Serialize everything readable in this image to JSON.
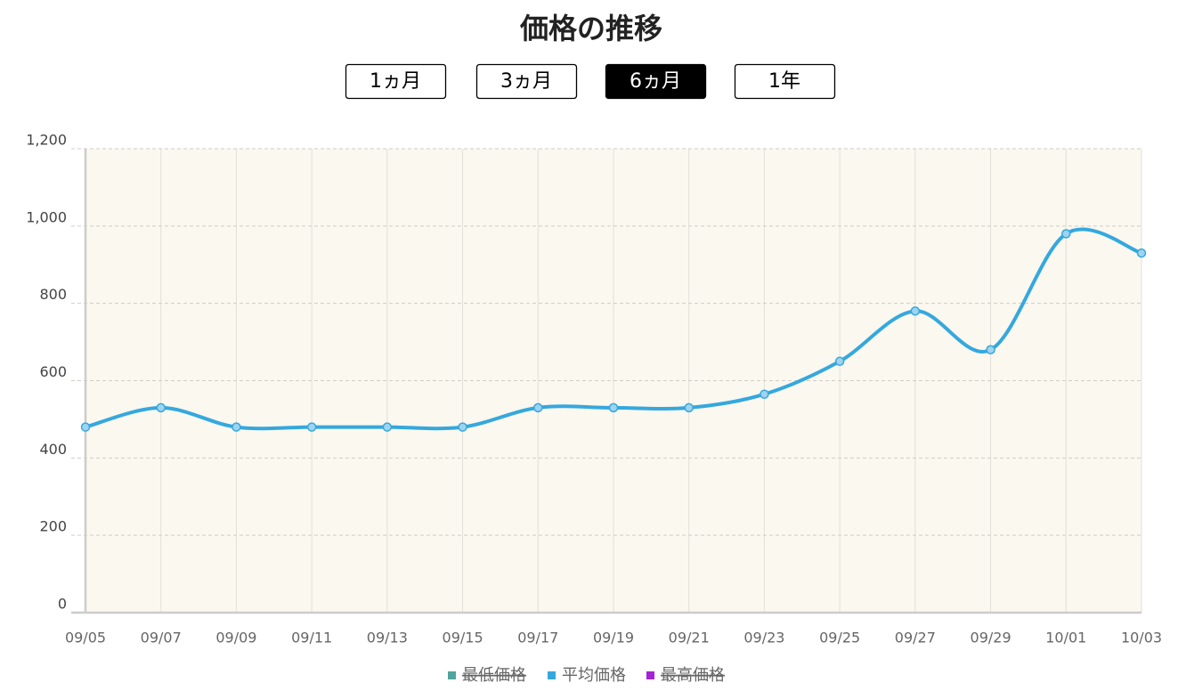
{
  "chart_data": {
    "type": "line",
    "title": "価格の推移",
    "range_buttons": [
      "1ヵ月",
      "3ヵ月",
      "6ヵ月",
      "1年"
    ],
    "selected_range": "6ヵ月",
    "categories": [
      "09/05",
      "09/07",
      "09/09",
      "09/11",
      "09/13",
      "09/15",
      "09/17",
      "09/19",
      "09/21",
      "09/23",
      "09/25",
      "09/27",
      "09/29",
      "10/01",
      "10/03"
    ],
    "series": [
      {
        "name": "最低価格",
        "color": "#4fa59e",
        "hidden": true,
        "values": [
          null,
          null,
          null,
          null,
          null,
          null,
          null,
          null,
          null,
          null,
          null,
          null,
          null,
          null,
          null
        ]
      },
      {
        "name": "平均価格",
        "color": "#35a8de",
        "hidden": false,
        "values": [
          480,
          530,
          480,
          480,
          480,
          480,
          530,
          530,
          530,
          565,
          650,
          780,
          680,
          980,
          930
        ]
      },
      {
        "name": "最高価格",
        "color": "#a324d6",
        "hidden": true,
        "values": [
          null,
          null,
          null,
          null,
          null,
          null,
          null,
          null,
          null,
          null,
          null,
          null,
          null,
          null,
          null
        ]
      }
    ],
    "ylim": [
      0,
      1200
    ],
    "yticks": [
      0,
      200,
      400,
      600,
      800,
      {
        "value": 1000,
        "label": "1,000"
      },
      {
        "value": 1200,
        "label": "1,200"
      }
    ],
    "grid": true
  }
}
